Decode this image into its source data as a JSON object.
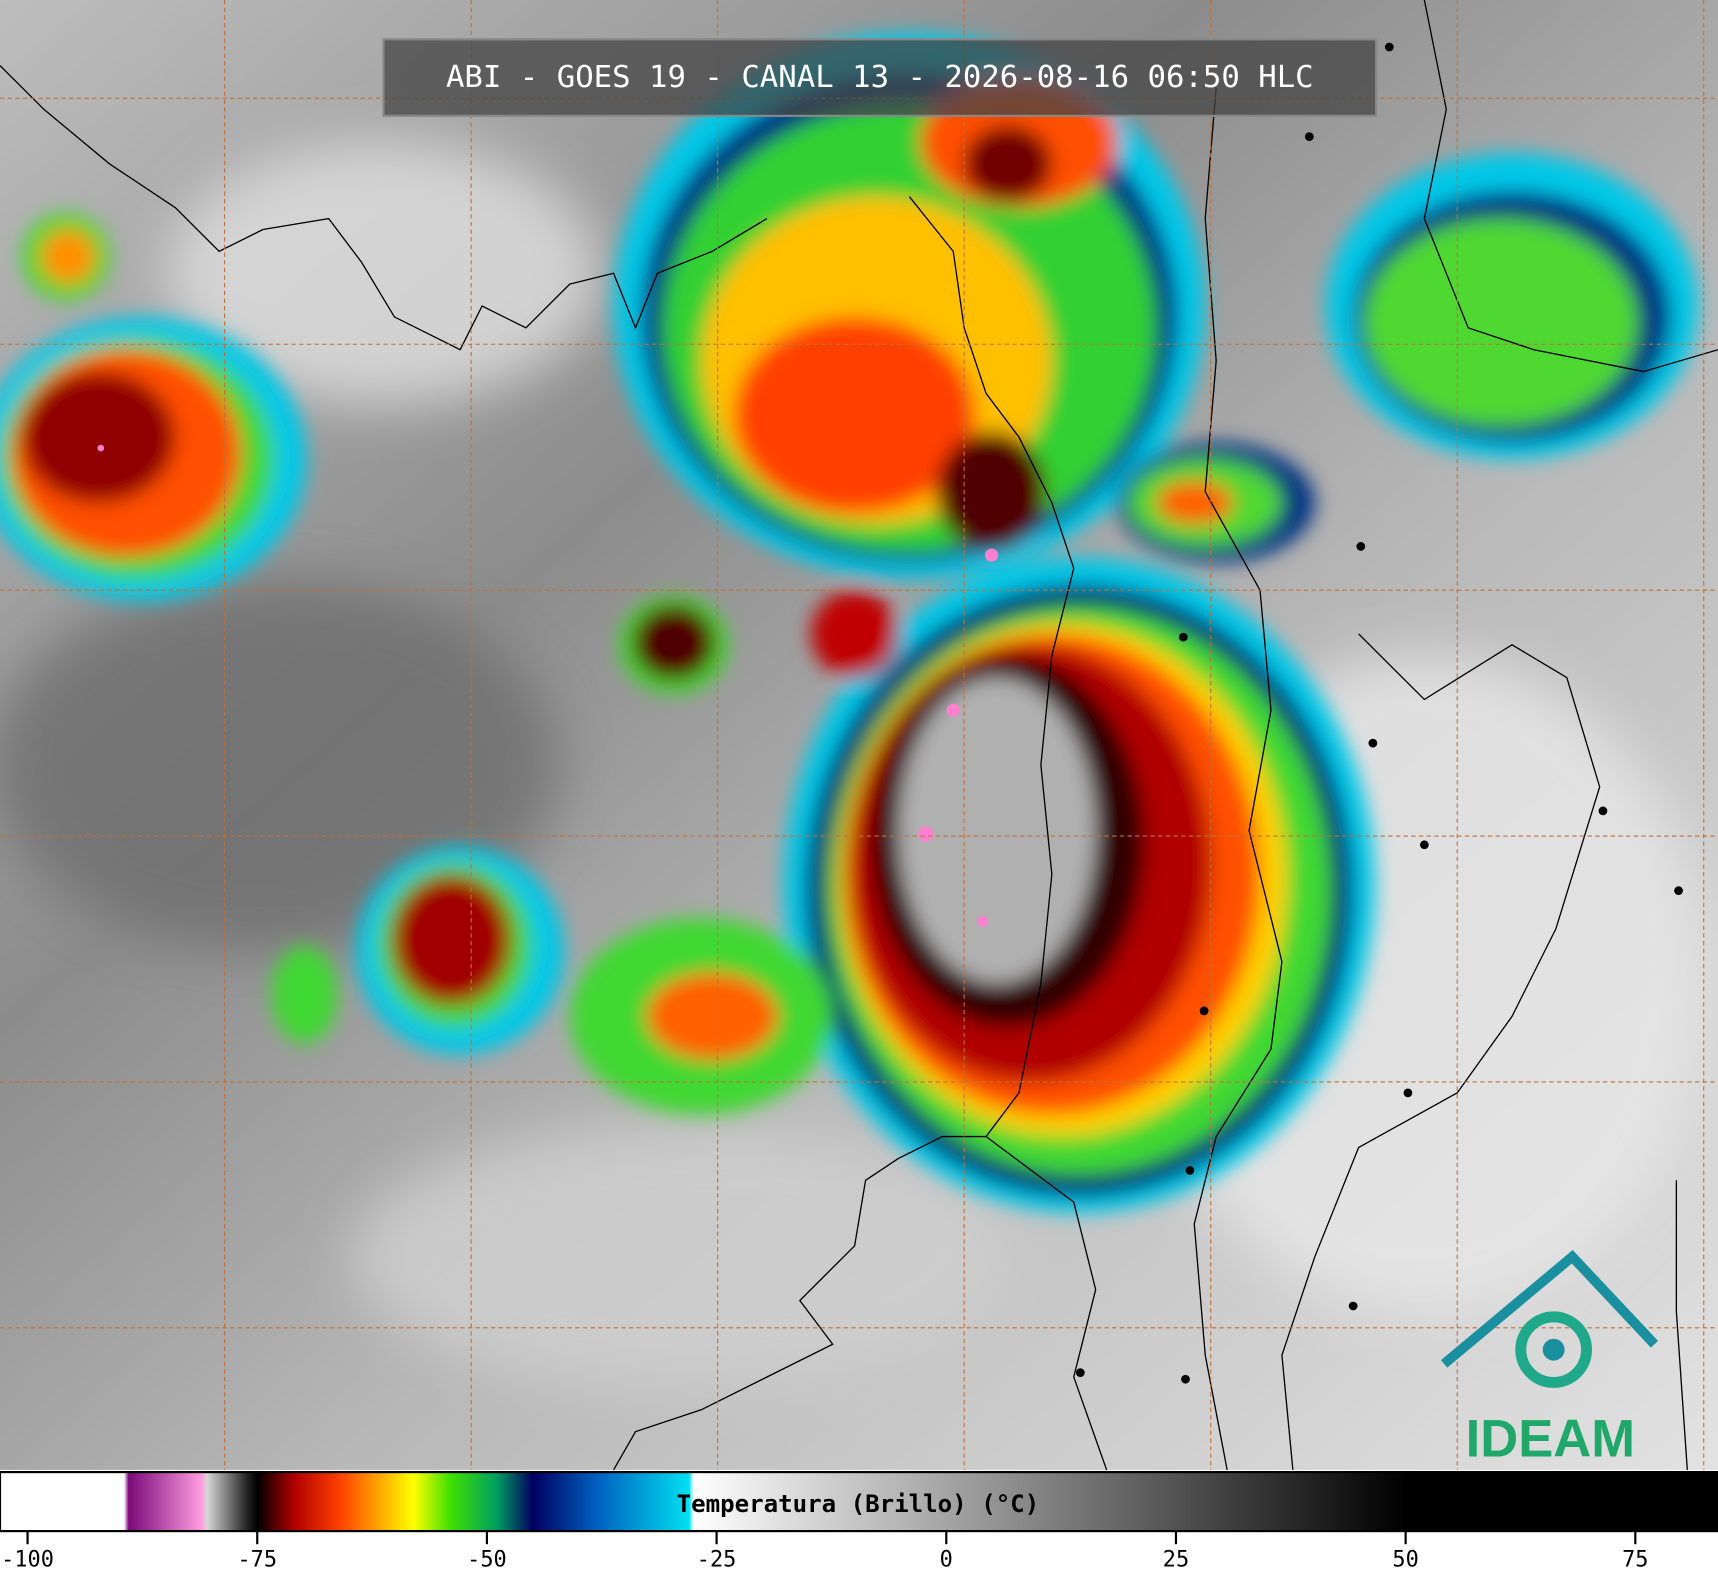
{
  "title": "ABI - GOES 19 - CANAL 13 - 2026-08-16 06:50 HLC",
  "colorbar": {
    "label": "Temperatura (Brillo) (°C)",
    "lim": [
      -103,
      84
    ],
    "ticks": [
      -100,
      -75,
      -50,
      -25,
      0,
      25,
      50,
      75
    ],
    "stops": [
      {
        "value": -89.5,
        "color": "#ffffff"
      },
      {
        "value": -89,
        "color": "#7a0a7a"
      },
      {
        "value": -81,
        "color": "#ff9ee0"
      },
      {
        "value": -80.5,
        "color": "#d8d8d8"
      },
      {
        "value": -76,
        "color": "#202020"
      },
      {
        "value": -75,
        "color": "#000000"
      },
      {
        "value": -71,
        "color": "#b00000"
      },
      {
        "value": -66,
        "color": "#ff4000"
      },
      {
        "value": -62,
        "color": "#ffa000"
      },
      {
        "value": -58,
        "color": "#ffff00"
      },
      {
        "value": -54,
        "color": "#40e000"
      },
      {
        "value": -49,
        "color": "#00a060"
      },
      {
        "value": -45,
        "color": "#000060"
      },
      {
        "value": -38,
        "color": "#0060c0"
      },
      {
        "value": -28,
        "color": "#00e0f0"
      },
      {
        "value": -27.5,
        "color": "#ffffff"
      },
      {
        "value": 50,
        "color": "#000000"
      },
      {
        "value": 84,
        "color": "#000000"
      }
    ]
  },
  "logo": "IDEAM"
}
